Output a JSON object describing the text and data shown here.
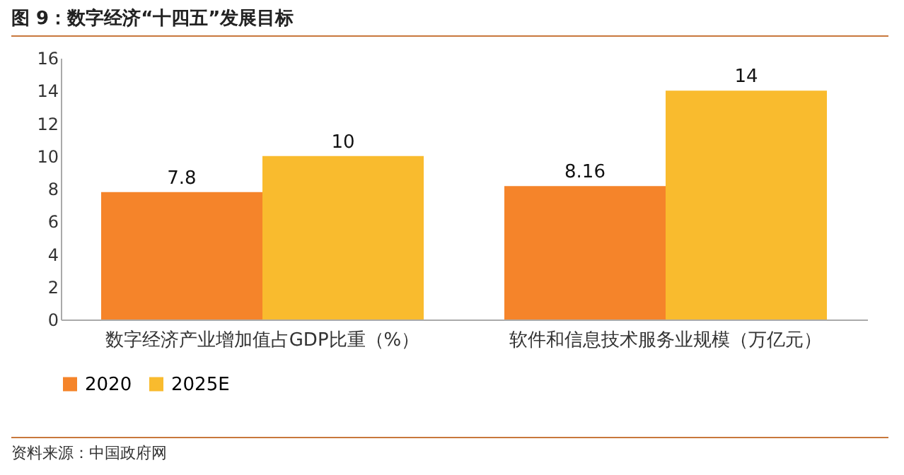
{
  "chart_data": {
    "type": "bar",
    "title": "图 9：数字经济“十四五”发展目标",
    "categories": [
      "数字经济产业增加值占GDP比重（%）",
      "软件和信息技术服务业规模（万亿元）"
    ],
    "series": [
      {
        "name": "2020",
        "color": "#f5842a",
        "values": [
          7.8,
          8.16
        ]
      },
      {
        "name": "2025E",
        "color": "#f9bb2e",
        "values": [
          10,
          14
        ]
      }
    ],
    "ylim": [
      0,
      16
    ],
    "yticks": [
      0,
      2,
      4,
      6,
      8,
      10,
      12,
      14,
      16
    ],
    "grid": false,
    "legend": "bottom",
    "data_labels": true,
    "annotations": [
      "资料来源：中国政府网"
    ]
  }
}
